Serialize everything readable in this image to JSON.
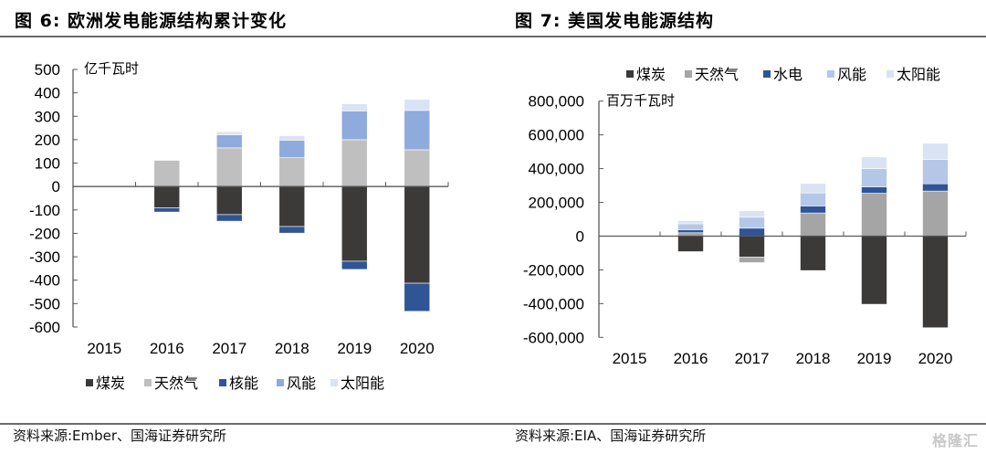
{
  "figures": [
    {
      "title": "图 6:  欧洲发电能源结构累计变化",
      "source": "资料来源:Ember、国海证券研究所"
    },
    {
      "title": "图 7:  美国发电能源结构",
      "source": "资料来源:EIA、国海证券研究所"
    }
  ],
  "watermark": "格隆汇",
  "chart_data": [
    {
      "type": "bar",
      "stacked": true,
      "title": "欧洲发电能源结构累计变化",
      "unit_label": "亿千瓦时",
      "xlabel": "",
      "ylabel": "亿千瓦时",
      "ylim": [
        -600,
        500
      ],
      "yticks": [
        500,
        400,
        300,
        200,
        100,
        0,
        -100,
        -200,
        -300,
        -400,
        -500,
        -600
      ],
      "ytick_labels": [
        "500",
        "400",
        "300",
        "200",
        "100",
        "0",
        "-100",
        "-200",
        "-300",
        "-400",
        "-500",
        "-600"
      ],
      "categories": [
        "2015",
        "2016",
        "2017",
        "2018",
        "2019",
        "2020"
      ],
      "legend_position": "bottom",
      "grid": false,
      "series": [
        {
          "name": "煤炭",
          "color": "#3b3a38",
          "values": [
            0,
            -91,
            -120,
            -171,
            -319,
            -413
          ]
        },
        {
          "name": "天然气",
          "color": "#bfbfbf",
          "values": [
            0,
            112,
            165,
            123,
            200,
            157
          ]
        },
        {
          "name": "核能",
          "color": "#2f5597",
          "values": [
            0,
            -18,
            -28,
            -28,
            -35,
            -120
          ]
        },
        {
          "name": "风能",
          "color": "#8faadc",
          "values": [
            0,
            0,
            56,
            75,
            123,
            168
          ]
        },
        {
          "name": "太阳能",
          "color": "#dae3f3",
          "values": [
            0,
            3,
            13,
            19,
            30,
            47
          ]
        }
      ]
    },
    {
      "type": "bar",
      "stacked": true,
      "title": "美国发电能源结构",
      "unit_label": "百万千瓦时",
      "xlabel": "",
      "ylabel": "百万千瓦时",
      "ylim": [
        -600000,
        800000
      ],
      "yticks": [
        800000,
        600000,
        400000,
        200000,
        0,
        -200000,
        -400000,
        -600000
      ],
      "ytick_labels": [
        "800,000",
        "600,000",
        "400,000",
        "200,000",
        "0",
        "-200,000",
        "-400,000",
        "-600,000"
      ],
      "categories": [
        "2015",
        "2016",
        "2017",
        "2018",
        "2019",
        "2020"
      ],
      "legend_position": "top",
      "grid": false,
      "series": [
        {
          "name": "煤炭",
          "color": "#3b3a38",
          "values": [
            0,
            -92000,
            -124000,
            -204000,
            -404000,
            -543000
          ]
        },
        {
          "name": "天然气",
          "color": "#a5a5a5",
          "values": [
            0,
            20000,
            -33000,
            137000,
            254000,
            267000
          ]
        },
        {
          "name": "水电",
          "color": "#2f5597",
          "values": [
            0,
            18000,
            47000,
            42000,
            38000,
            43000
          ]
        },
        {
          "name": "风能",
          "color": "#b4c7e7",
          "values": [
            0,
            35000,
            65000,
            77000,
            108000,
            144000
          ]
        },
        {
          "name": "太阳能",
          "color": "#dae3f3",
          "values": [
            0,
            18000,
            38000,
            56000,
            69000,
            96000
          ]
        }
      ]
    }
  ]
}
